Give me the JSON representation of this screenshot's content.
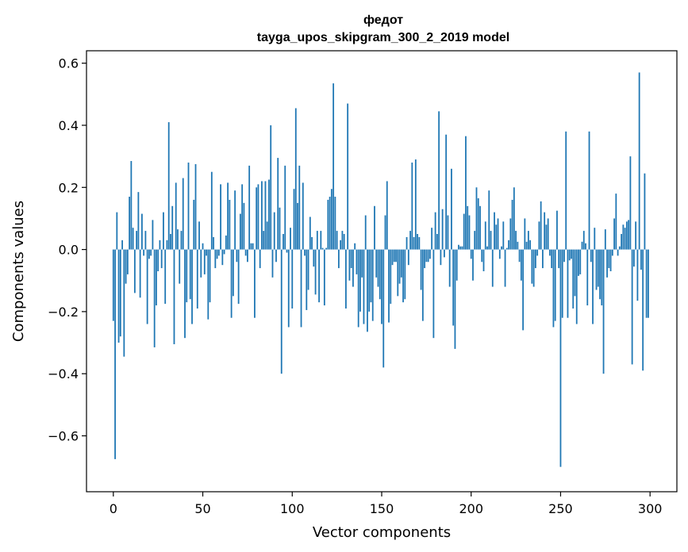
{
  "chart_data": {
    "type": "bar",
    "title": "федот",
    "subtitle": "tayga_upos_skipgram_300_2_2019 model",
    "xlabel": "Vector components",
    "ylabel": "Components values",
    "xlim": [
      -15,
      315
    ],
    "ylim": [
      -0.78,
      0.64
    ],
    "xticks": [
      0,
      50,
      100,
      150,
      200,
      250,
      300
    ],
    "yticks": [
      -0.6,
      -0.4,
      -0.2,
      0.0,
      0.2,
      0.4,
      0.6
    ],
    "ytick_labels": [
      "−0.6",
      "−0.4",
      "−0.2",
      "0.0",
      "0.2",
      "0.4",
      "0.6"
    ],
    "grid": false,
    "legend": "none",
    "bar_color": "#1f77b4",
    "x_start": 0,
    "values": [
      -0.23,
      -0.675,
      0.12,
      -0.3,
      -0.28,
      0.03,
      -0.345,
      -0.11,
      -0.08,
      0.17,
      0.285,
      0.07,
      -0.14,
      0.06,
      0.185,
      -0.155,
      0.115,
      -0.02,
      0.06,
      -0.24,
      -0.03,
      -0.02,
      0.095,
      -0.315,
      -0.18,
      -0.07,
      0.03,
      -0.06,
      0.12,
      -0.175,
      0.03,
      0.41,
      0.05,
      0.14,
      -0.305,
      0.215,
      0.065,
      -0.11,
      0.06,
      0.23,
      -0.285,
      -0.17,
      0.28,
      -0.16,
      -0.24,
      0.16,
      0.275,
      -0.19,
      0.09,
      -0.09,
      0.02,
      -0.08,
      -0.02,
      -0.225,
      -0.17,
      0.25,
      0.04,
      -0.06,
      -0.03,
      -0.02,
      0.21,
      -0.05,
      -0.015,
      0.045,
      0.215,
      0.16,
      -0.22,
      -0.15,
      0.19,
      -0.04,
      -0.175,
      0.115,
      0.21,
      0.15,
      -0.02,
      -0.04,
      0.27,
      0.02,
      0.02,
      -0.22,
      0.2,
      0.21,
      -0.06,
      0.22,
      0.06,
      0.22,
      0.09,
      0.225,
      0.4,
      -0.09,
      0.12,
      -0.04,
      0.295,
      0.135,
      -0.4,
      0.05,
      0.27,
      -0.01,
      -0.25,
      0.07,
      -0.19,
      0.195,
      0.455,
      0.15,
      0.27,
      -0.25,
      0.215,
      -0.02,
      -0.195,
      -0.13,
      0.105,
      0.04,
      -0.055,
      -0.145,
      0.06,
      -0.17,
      0.06,
      0.005,
      -0.18,
      0.005,
      0.16,
      0.17,
      0.195,
      0.535,
      0.17,
      0.06,
      -0.06,
      0.03,
      0.06,
      0.05,
      -0.19,
      0.47,
      -0.1,
      -0.06,
      -0.12,
      0.02,
      -0.08,
      -0.25,
      -0.2,
      -0.09,
      -0.24,
      0.11,
      -0.265,
      -0.2,
      -0.17,
      -0.23,
      0.14,
      -0.09,
      -0.12,
      -0.16,
      -0.24,
      -0.38,
      0.11,
      0.22,
      -0.235,
      -0.175,
      -0.05,
      -0.04,
      -0.04,
      -0.15,
      -0.11,
      -0.09,
      -0.17,
      -0.16,
      0.04,
      -0.05,
      0.06,
      0.28,
      0.04,
      0.29,
      0.05,
      0.04,
      -0.13,
      -0.23,
      -0.06,
      -0.04,
      -0.04,
      -0.03,
      0.07,
      -0.285,
      0.12,
      0.05,
      0.445,
      -0.05,
      0.13,
      -0.025,
      0.37,
      0.11,
      -0.12,
      0.26,
      -0.245,
      -0.32,
      -0.1,
      0.015,
      0.01,
      0.01,
      0.115,
      0.365,
      0.14,
      0.11,
      -0.03,
      -0.1,
      0.06,
      0.2,
      0.165,
      0.14,
      -0.04,
      -0.07,
      0.09,
      0.01,
      0.19,
      0.06,
      -0.12,
      0.12,
      0.08,
      0.1,
      -0.03,
      0.01,
      0.09,
      -0.12,
      0.005,
      0.03,
      0.1,
      0.16,
      0.2,
      0.06,
      0.025,
      -0.04,
      -0.1,
      -0.26,
      0.1,
      0.025,
      0.06,
      0.03,
      -0.11,
      -0.12,
      -0.06,
      -0.02,
      0.09,
      0.155,
      -0.06,
      0.12,
      0.08,
      0.1,
      -0.02,
      -0.06,
      -0.25,
      -0.23,
      0.125,
      -0.06,
      -0.7,
      -0.22,
      -0.04,
      0.38,
      -0.22,
      -0.035,
      -0.03,
      -0.19,
      -0.15,
      -0.24,
      -0.085,
      -0.08,
      0.025,
      0.06,
      0.02,
      -0.18,
      0.38,
      -0.04,
      -0.24,
      0.07,
      -0.13,
      -0.12,
      -0.16,
      -0.18,
      -0.4,
      0.065,
      -0.09,
      -0.06,
      -0.07,
      -0.02,
      0.1,
      0.18,
      -0.02,
      0.01,
      0.05,
      0.08,
      0.07,
      0.09,
      0.095,
      0.3,
      -0.37,
      -0.055,
      0.09,
      -0.165,
      0.57,
      -0.065,
      -0.39,
      0.245,
      -0.22,
      -0.22
    ]
  }
}
